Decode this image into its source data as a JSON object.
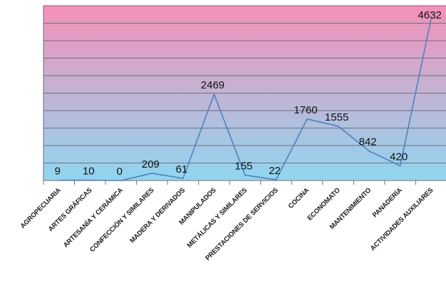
{
  "chart_data": {
    "type": "line",
    "categories": [
      "AGROPECUARIA",
      "ARTES GRÁFICAS",
      "ARTESANÍA Y CERÁMICA",
      "CONFECCIÓN Y SIMILARES",
      "MADERA Y DERIVADOS",
      "MANIPULADOS",
      "METÁLICAS Y SIMILARES",
      "PRESTACIONES DE SERVICIOS",
      "COCINA",
      "ECONOMATO",
      "MANTENIMIENTO",
      "PANADERÍA",
      "ACTIVIDADES AUXILIARES"
    ],
    "values": [
      9,
      10,
      0,
      209,
      61,
      2469,
      155,
      22,
      1760,
      1555,
      842,
      420,
      4632
    ],
    "data_labels": [
      "9",
      "10",
      "0",
      "209",
      "61",
      "2469",
      "155",
      "22",
      "1760",
      "1555",
      "842",
      "420",
      "4632"
    ],
    "ylim": [
      0,
      5000
    ],
    "grid": true,
    "legend": "none",
    "colors": {
      "line": "#4f81bd",
      "gridline": "#6f6f80",
      "background_top": "#f490b8",
      "background_bottom": "#90d6f0"
    }
  }
}
